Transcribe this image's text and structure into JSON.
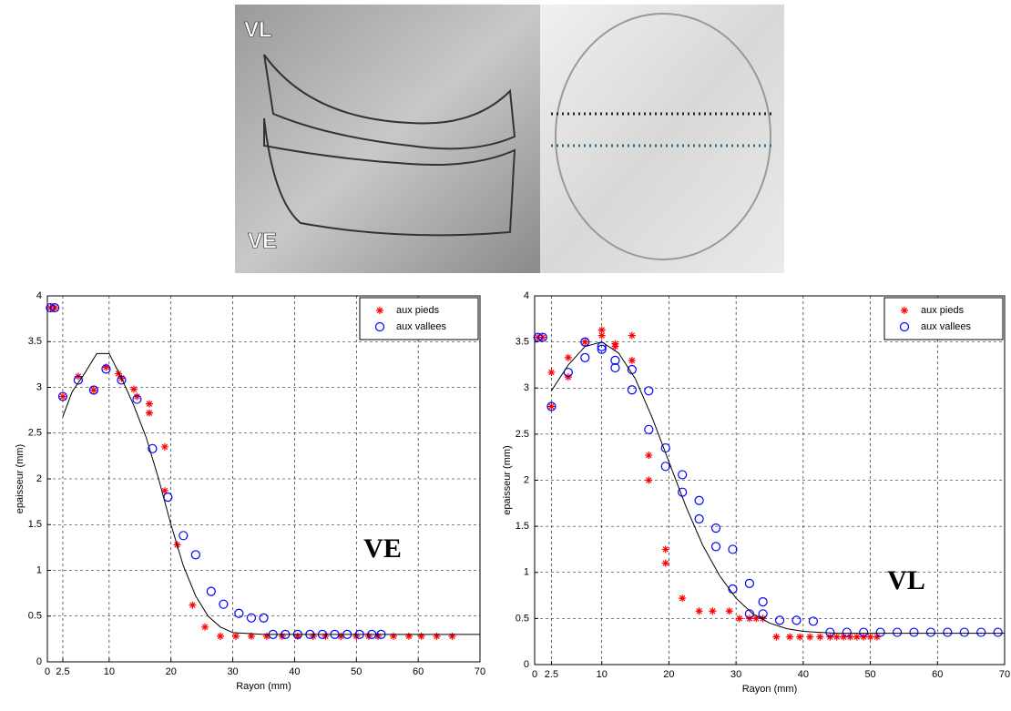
{
  "photo": {
    "labels": [
      "VL",
      "VE"
    ]
  },
  "chart_data": [
    {
      "type": "scatter",
      "xlabel": "Rayon (mm)",
      "ylabel": "epaisseur (mm)",
      "annotation": "VE",
      "xlim": [
        0,
        70
      ],
      "ylim": [
        0,
        4
      ],
      "xticks": [
        0,
        2.5,
        10,
        20,
        30,
        40,
        50,
        60,
        70
      ],
      "yticks": [
        0,
        0.5,
        1,
        1.5,
        2,
        2.5,
        3,
        3.5,
        4
      ],
      "grid": true,
      "legend": "upper right",
      "series": [
        {
          "name": "aux pieds",
          "color": "#ff0000",
          "marker": "star",
          "x": [
            0.5,
            1.2,
            2.5,
            5,
            7.5,
            9.5,
            11.5,
            12,
            14,
            14.5,
            16.5,
            16.5,
            19,
            19,
            21,
            23.5,
            25.5,
            28,
            30.5,
            33,
            35.5,
            38,
            40.5,
            43,
            45,
            47.5,
            50,
            52,
            53.5,
            56,
            58.5,
            60.5,
            63,
            65.5
          ],
          "values": [
            3.87,
            3.87,
            2.9,
            3.12,
            2.97,
            3.22,
            3.15,
            3.1,
            2.98,
            2.9,
            2.82,
            2.72,
            2.35,
            1.87,
            1.28,
            0.62,
            0.38,
            0.28,
            0.28,
            0.28,
            0.28,
            0.28,
            0.28,
            0.28,
            0.28,
            0.28,
            0.28,
            0.28,
            0.28,
            0.28,
            0.28,
            0.28,
            0.28,
            0.28
          ]
        },
        {
          "name": "aux vallees",
          "color": "#0000ff",
          "marker": "circle",
          "x": [
            0.5,
            1.2,
            2.5,
            5,
            7.5,
            9.5,
            12,
            14.5,
            17,
            19.5,
            22,
            24,
            26.5,
            28.5,
            31,
            33,
            35,
            36.5,
            38.5,
            40.5,
            42.5,
            44.5,
            46.5,
            48.5,
            50.5,
            52.5,
            54
          ],
          "values": [
            3.87,
            3.87,
            2.9,
            3.08,
            2.97,
            3.2,
            3.08,
            2.87,
            2.33,
            1.8,
            1.38,
            1.17,
            0.77,
            0.63,
            0.53,
            0.48,
            0.48,
            0.3,
            0.3,
            0.3,
            0.3,
            0.3,
            0.3,
            0.3,
            0.3,
            0.3,
            0.3
          ]
        },
        {
          "color": "#000000",
          "marker": "line",
          "x": [
            2.5,
            4,
            6,
            8,
            10,
            12,
            14,
            16,
            18,
            20,
            22,
            24,
            26,
            28,
            30,
            35,
            70
          ],
          "values": [
            2.68,
            2.95,
            3.15,
            3.37,
            3.37,
            3.1,
            2.8,
            2.45,
            2.0,
            1.5,
            1.05,
            0.72,
            0.5,
            0.38,
            0.32,
            0.3,
            0.3
          ]
        }
      ]
    },
    {
      "type": "scatter",
      "xlabel": "Rayon (mm)",
      "ylabel": "epaisseur (mm)",
      "annotation": "VL",
      "xlim": [
        0,
        70
      ],
      "ylim": [
        0,
        4
      ],
      "xticks": [
        0,
        2.5,
        10,
        20,
        30,
        40,
        50,
        60,
        70
      ],
      "yticks": [
        0,
        0.5,
        1,
        1.5,
        2,
        2.5,
        3,
        3.5,
        4
      ],
      "grid": true,
      "legend": "upper right",
      "series": [
        {
          "name": "aux pieds",
          "color": "#ff0000",
          "marker": "star",
          "x": [
            0.5,
            1.2,
            2.5,
            2.5,
            5,
            5,
            7.5,
            10,
            10,
            12,
            12,
            14.5,
            14.5,
            17,
            17,
            19.5,
            19.5,
            22,
            24.5,
            26.5,
            29,
            30.5,
            32,
            33,
            34,
            36,
            38,
            39.5,
            41,
            42.5,
            44,
            45,
            46,
            47,
            48,
            49,
            50,
            51
          ],
          "values": [
            3.55,
            3.55,
            3.17,
            2.8,
            3.33,
            3.12,
            3.5,
            3.63,
            3.57,
            3.45,
            3.48,
            3.57,
            3.3,
            2.27,
            2.0,
            1.25,
            1.1,
            0.72,
            0.58,
            0.58,
            0.58,
            0.5,
            0.5,
            0.5,
            0.5,
            0.3,
            0.3,
            0.3,
            0.3,
            0.3,
            0.3,
            0.3,
            0.3,
            0.3,
            0.3,
            0.3,
            0.3,
            0.3
          ]
        },
        {
          "name": "aux vallees",
          "color": "#0000ff",
          "marker": "circle",
          "x": [
            0.5,
            1.2,
            2.5,
            5,
            7.5,
            7.5,
            10,
            10,
            12,
            12,
            14.5,
            14.5,
            17,
            17,
            19.5,
            19.5,
            22,
            22,
            24.5,
            24.5,
            27,
            27,
            29.5,
            29.5,
            32,
            32,
            34,
            34,
            36.5,
            39,
            41.5,
            44,
            46.5,
            49,
            51.5,
            54,
            56.5,
            59,
            61.5,
            64,
            66.5,
            69
          ],
          "values": [
            3.55,
            3.55,
            2.8,
            3.17,
            3.33,
            3.5,
            3.42,
            3.45,
            3.3,
            3.22,
            3.2,
            2.98,
            2.97,
            2.55,
            2.35,
            2.15,
            2.06,
            1.87,
            1.78,
            1.58,
            1.48,
            1.28,
            1.25,
            0.82,
            0.88,
            0.55,
            0.68,
            0.55,
            0.48,
            0.48,
            0.47,
            0.35,
            0.35,
            0.35,
            0.35,
            0.35,
            0.35,
            0.35,
            0.35,
            0.35,
            0.35,
            0.35
          ]
        },
        {
          "color": "#000000",
          "marker": "line",
          "x": [
            2.5,
            5,
            7.5,
            10,
            12.5,
            15,
            17.5,
            20,
            22.5,
            25,
            27.5,
            30,
            32.5,
            35,
            37.5,
            40,
            45,
            70
          ],
          "values": [
            2.97,
            3.25,
            3.45,
            3.5,
            3.38,
            3.1,
            2.68,
            2.2,
            1.72,
            1.3,
            0.97,
            0.72,
            0.55,
            0.45,
            0.39,
            0.36,
            0.34,
            0.34
          ]
        }
      ]
    }
  ]
}
